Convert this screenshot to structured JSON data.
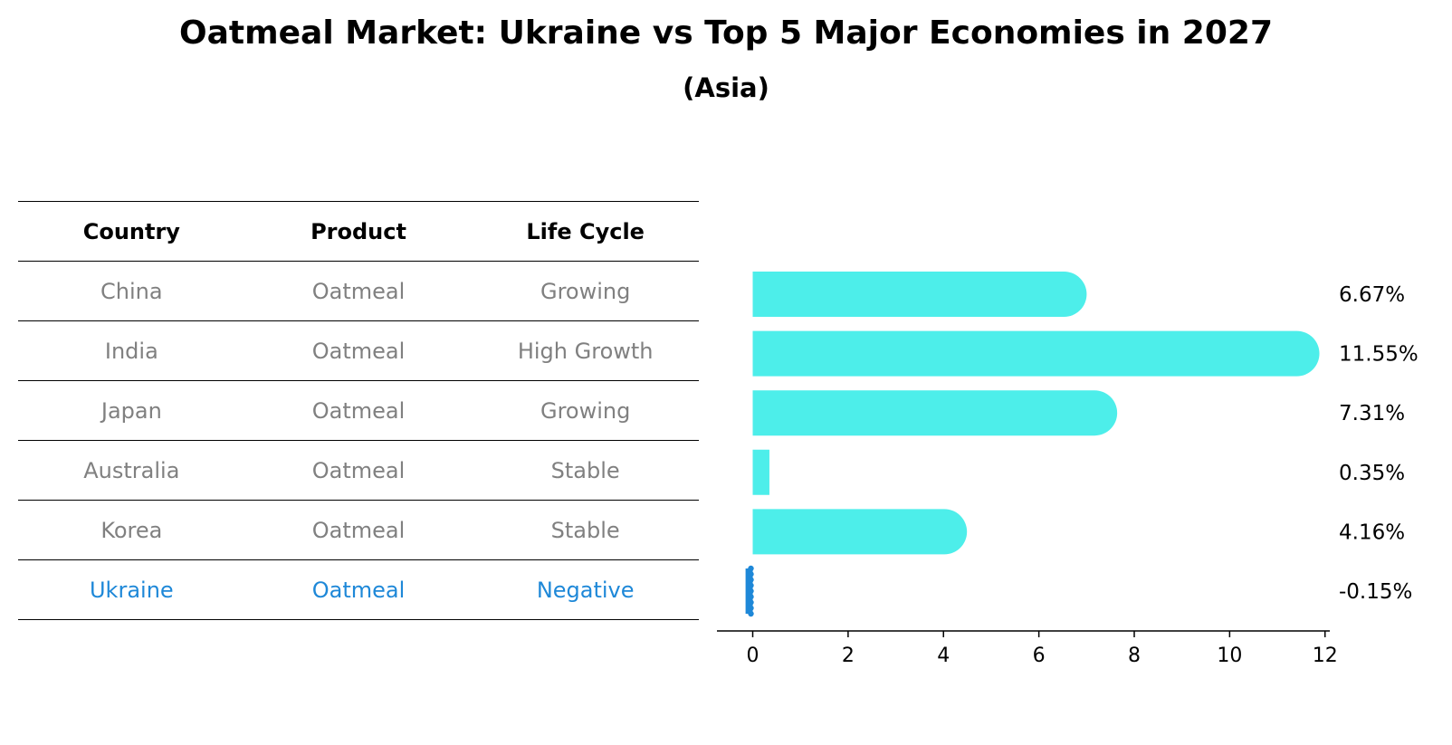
{
  "title": "Oatmeal Market: Ukraine vs Top 5 Major Economies in 2027",
  "subtitle": "(Asia)",
  "table": {
    "headers": [
      "Country",
      "Product",
      "Life Cycle"
    ],
    "rows": [
      [
        "China",
        "Oatmeal",
        "Growing"
      ],
      [
        "India",
        "Oatmeal",
        "High Growth"
      ],
      [
        "Japan",
        "Oatmeal",
        "Growing"
      ],
      [
        "Australia",
        "Oatmeal",
        "Stable"
      ],
      [
        "Korea",
        "Oatmeal",
        "Stable"
      ],
      [
        "Ukraine",
        "Oatmeal",
        "Negative"
      ]
    ],
    "highlight_row": 5
  },
  "colors": {
    "bar": "#4deeea",
    "highlight": "#1e88d8",
    "muted_text": "#808080"
  },
  "chart_data": {
    "type": "bar",
    "orientation": "horizontal",
    "categories": [
      "China",
      "India",
      "Japan",
      "Australia",
      "Korea",
      "Ukraine"
    ],
    "values": [
      6.67,
      11.55,
      7.31,
      0.35,
      4.16,
      -0.15
    ],
    "value_labels": [
      "6.67%",
      "11.55%",
      "7.31%",
      "0.35%",
      "4.16%",
      "-0.15%"
    ],
    "xlim": [
      -0.75,
      12.1
    ],
    "xticks": [
      0,
      2,
      4,
      6,
      8,
      10,
      12
    ],
    "xlabel": "",
    "ylabel": "",
    "grid": false
  }
}
